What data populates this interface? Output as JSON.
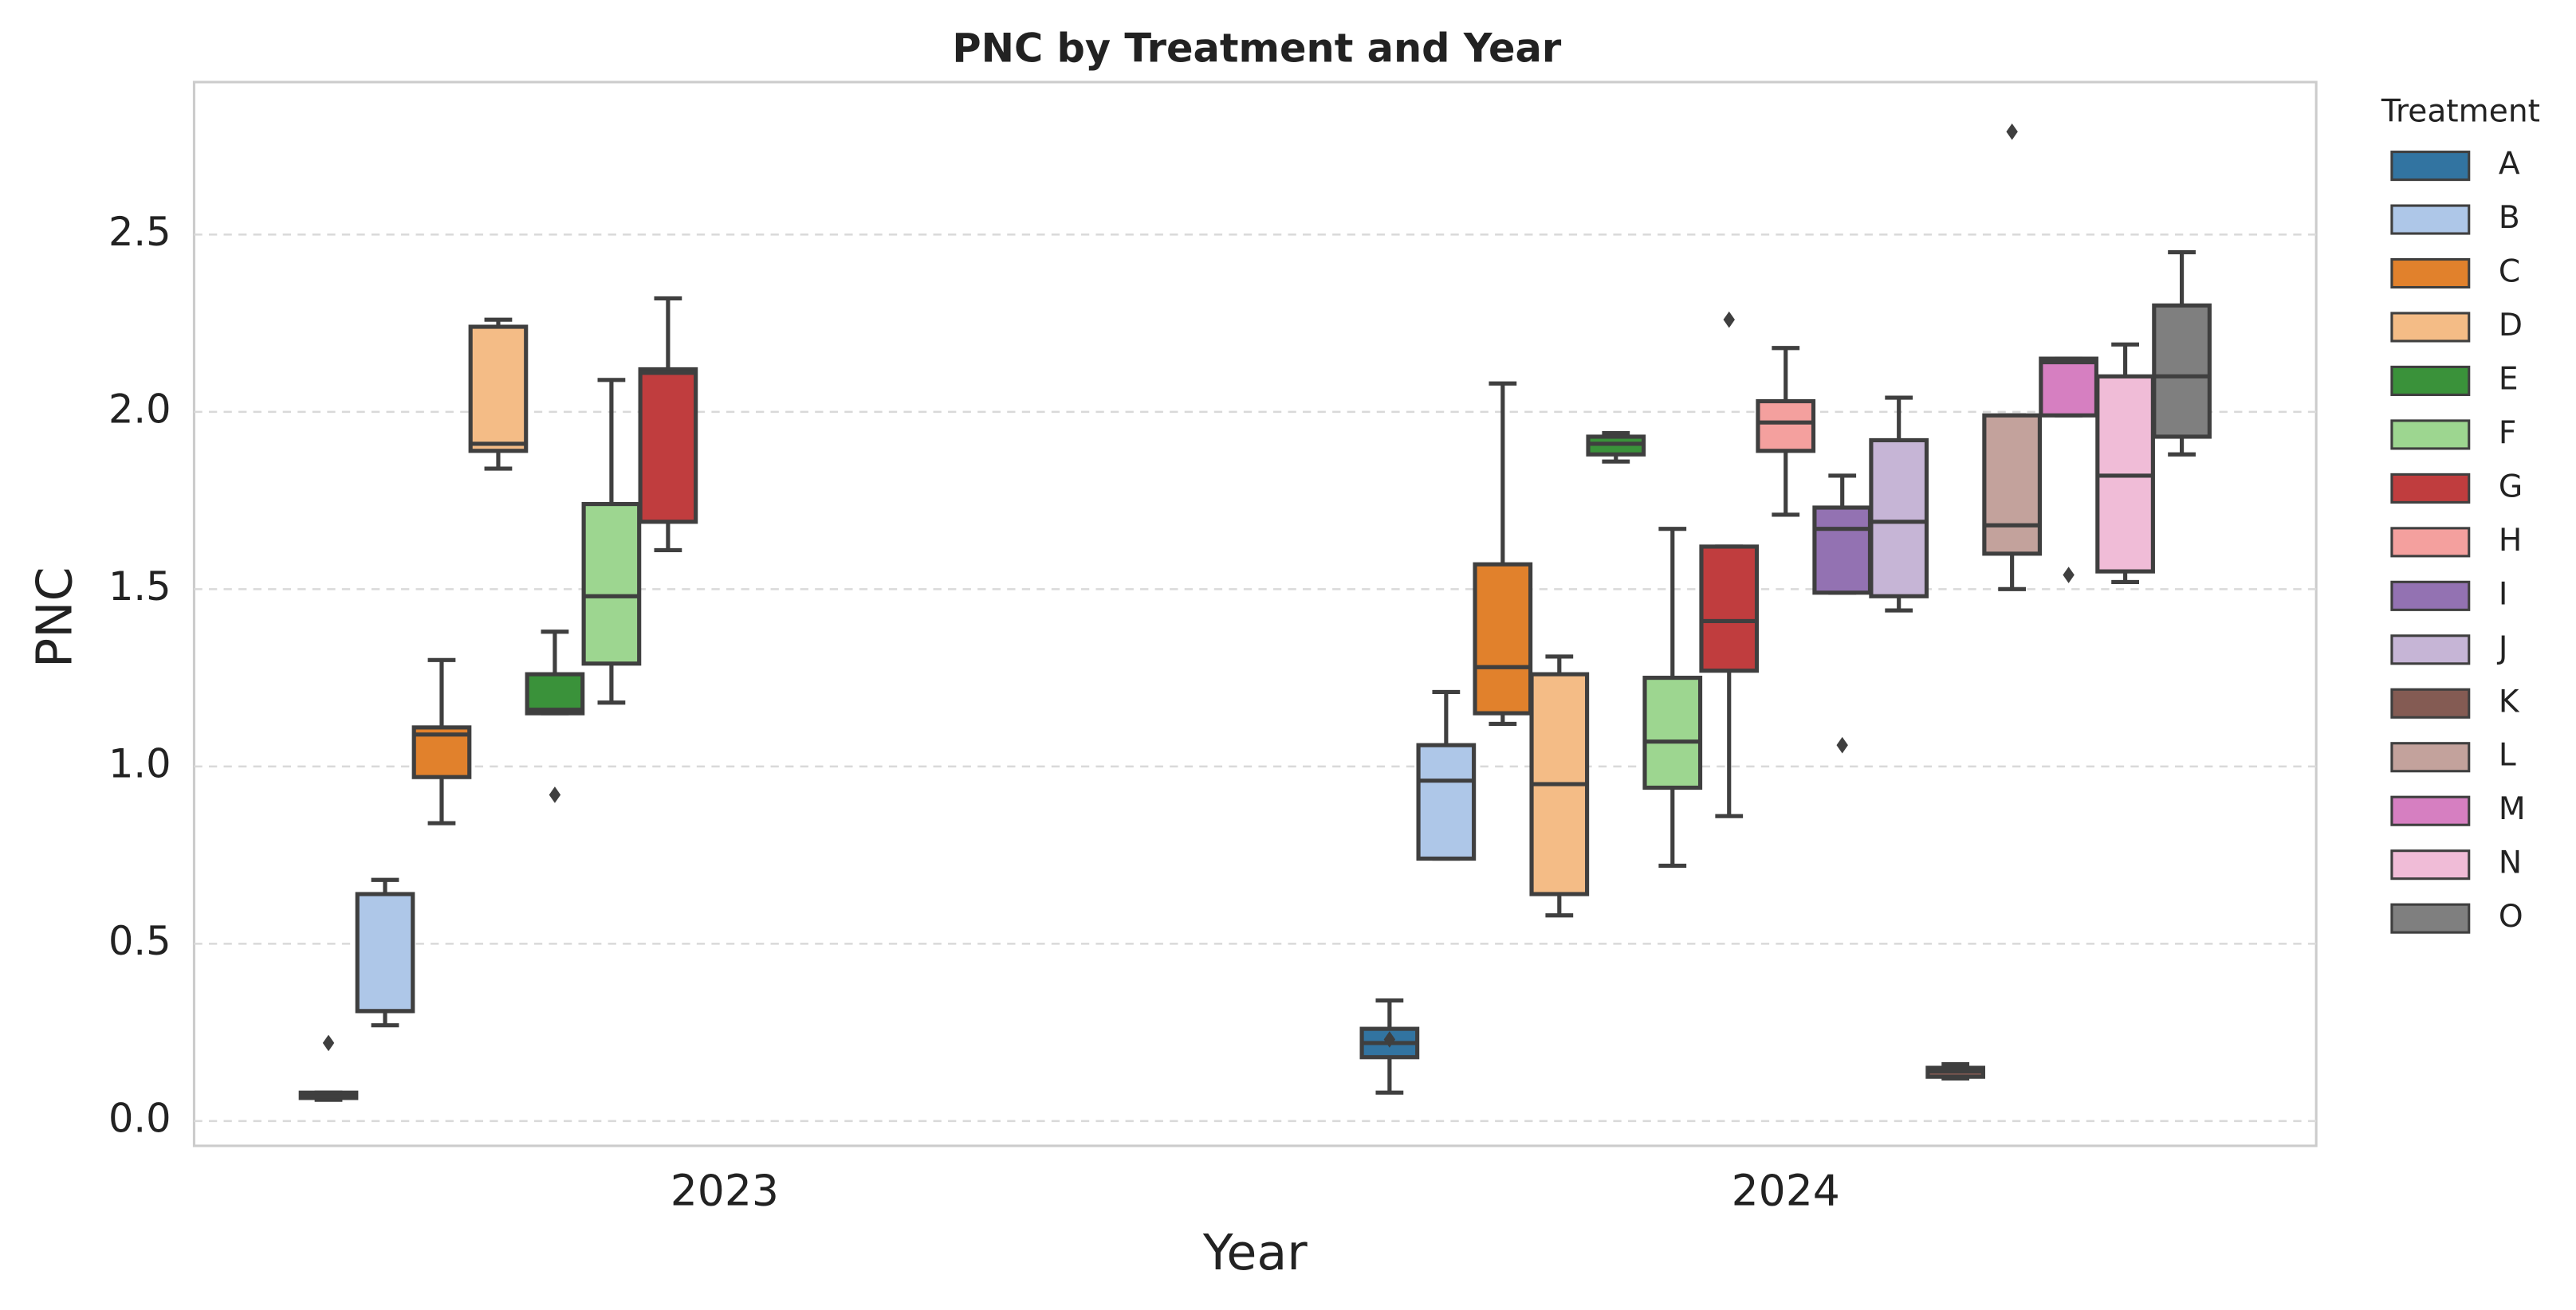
{
  "chart_data": {
    "type": "box",
    "title": "PNC by Treatment and Year",
    "x_label": "Year",
    "y_label": "PNC",
    "categories": [
      "2023",
      "2024"
    ],
    "ylim": [
      -0.07,
      2.93
    ],
    "yticks": [
      {
        "value": 0,
        "label": "0.0"
      },
      0.5,
      {
        "value": 1,
        "label": "1.0"
      },
      1.5,
      {
        "value": 2,
        "label": "2.0"
      },
      2.5
    ],
    "grid": true,
    "legend_title": "Treatment",
    "legend_position": "right",
    "series": [
      {
        "name": "A",
        "color": "#3274a1",
        "boxes": [
          {
            "low": 0.06,
            "q1": 0.065,
            "median": 0.07,
            "q3": 0.08,
            "high": 0.08,
            "outliers": [
              0.22
            ]
          },
          {
            "low": 0.08,
            "q1": 0.18,
            "median": 0.22,
            "q3": 0.26,
            "high": 0.34,
            "outliers": [
              0.23
            ]
          }
        ]
      },
      {
        "name": "B",
        "color": "#aec7e8",
        "boxes": [
          {
            "low": 0.27,
            "q1": 0.31,
            "median": 0.31,
            "q3": 0.64,
            "high": 0.68,
            "outliers": []
          },
          {
            "low": 0.74,
            "q1": 0.74,
            "median": 0.96,
            "q3": 1.06,
            "high": 1.21,
            "outliers": []
          }
        ]
      },
      {
        "name": "C",
        "color": "#e1812c",
        "boxes": [
          {
            "low": 0.84,
            "q1": 0.97,
            "median": 1.09,
            "q3": 1.11,
            "high": 1.3,
            "outliers": []
          },
          {
            "low": 1.12,
            "q1": 1.15,
            "median": 1.28,
            "q3": 1.57,
            "high": 2.08,
            "outliers": []
          }
        ]
      },
      {
        "name": "D",
        "color": "#f4bc86",
        "boxes": [
          {
            "low": 1.84,
            "q1": 1.89,
            "median": 1.91,
            "q3": 2.24,
            "high": 2.26,
            "outliers": []
          },
          {
            "low": 0.58,
            "q1": 0.64,
            "median": 0.95,
            "q3": 1.26,
            "high": 1.31,
            "outliers": []
          }
        ]
      },
      {
        "name": "E",
        "color": "#3a923a",
        "boxes": [
          {
            "low": 1.15,
            "q1": 1.15,
            "median": 1.16,
            "q3": 1.26,
            "high": 1.38,
            "outliers": [
              0.92
            ]
          },
          {
            "low": 1.86,
            "q1": 1.88,
            "median": 1.91,
            "q3": 1.93,
            "high": 1.94,
            "outliers": []
          }
        ]
      },
      {
        "name": "F",
        "color": "#9dd690",
        "boxes": [
          {
            "low": 1.18,
            "q1": 1.29,
            "median": 1.48,
            "q3": 1.74,
            "high": 2.09,
            "outliers": []
          },
          {
            "low": 0.72,
            "q1": 0.94,
            "median": 1.07,
            "q3": 1.25,
            "high": 1.67,
            "outliers": []
          }
        ]
      },
      {
        "name": "G",
        "color": "#c03d3e",
        "boxes": [
          {
            "low": 1.61,
            "q1": 1.69,
            "median": 2.11,
            "q3": 2.12,
            "high": 2.32,
            "outliers": []
          },
          {
            "low": 0.86,
            "q1": 1.27,
            "median": 1.41,
            "q3": 1.62,
            "high": 1.62,
            "outliers": [
              2.26
            ]
          }
        ]
      },
      {
        "name": "H",
        "color": "#f4a09e",
        "boxes": [
          null,
          {
            "low": 1.71,
            "q1": 1.89,
            "median": 1.97,
            "q3": 2.03,
            "high": 2.18,
            "outliers": []
          }
        ]
      },
      {
        "name": "I",
        "color": "#9372b2",
        "boxes": [
          null,
          {
            "low": 1.49,
            "q1": 1.49,
            "median": 1.67,
            "q3": 1.73,
            "high": 1.82,
            "outliers": [
              1.06
            ]
          }
        ]
      },
      {
        "name": "J",
        "color": "#c6b5d6",
        "boxes": [
          null,
          {
            "low": 1.44,
            "q1": 1.48,
            "median": 1.69,
            "q3": 1.92,
            "high": 2.04,
            "outliers": []
          }
        ]
      },
      {
        "name": "K",
        "color": "#845b53",
        "boxes": [
          null,
          {
            "low": 0.12,
            "q1": 0.125,
            "median": 0.14,
            "q3": 0.15,
            "high": 0.16,
            "outliers": []
          }
        ]
      },
      {
        "name": "L",
        "color": "#c3a29c",
        "boxes": [
          null,
          {
            "low": 1.5,
            "q1": 1.6,
            "median": 1.68,
            "q3": 1.99,
            "high": 1.99,
            "outliers": [
              2.79
            ]
          }
        ]
      },
      {
        "name": "M",
        "color": "#d67fc1",
        "boxes": [
          null,
          {
            "low": 1.99,
            "q1": 1.99,
            "median": 2.14,
            "q3": 2.15,
            "high": 2.15,
            "outliers": [
              1.54
            ]
          }
        ]
      },
      {
        "name": "N",
        "color": "#f0bcd7",
        "boxes": [
          null,
          {
            "low": 1.52,
            "q1": 1.55,
            "median": 1.82,
            "q3": 2.1,
            "high": 2.19,
            "outliers": []
          }
        ]
      },
      {
        "name": "O",
        "color": "#7f7f7f",
        "boxes": [
          null,
          {
            "low": 1.88,
            "q1": 1.93,
            "median": 2.1,
            "q3": 2.3,
            "high": 2.45,
            "outliers": []
          }
        ]
      }
    ]
  }
}
